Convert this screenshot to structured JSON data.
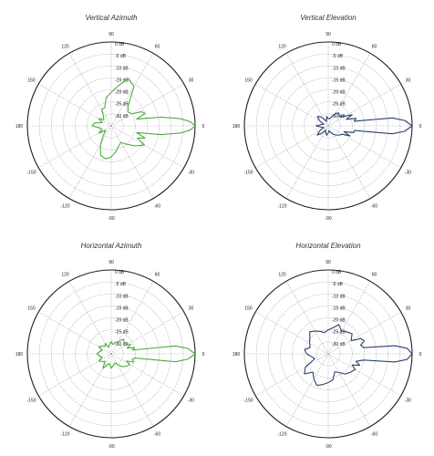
{
  "chart_data": [
    {
      "type": "polar-line",
      "title": "Vertical Azimuth",
      "color": "#4caf3d",
      "radial_ticks": [
        "0 dB",
        "-5 dB",
        "-10 dB",
        "-15 dB",
        "-20 dB",
        "-25 dB",
        "-30 dB"
      ],
      "angle_ticks": [
        "0",
        "30",
        "60",
        "90",
        "120",
        "150",
        "180",
        "-150",
        "-120",
        "-90",
        "-60",
        "-30"
      ],
      "rlim": [
        -35,
        0
      ],
      "series": [
        {
          "angles_deg": [
            -180,
            -170,
            -160,
            -150,
            -140,
            -130,
            -120,
            -110,
            -100,
            -90,
            -80,
            -70,
            -60,
            -50,
            -40,
            -30,
            -25,
            -20,
            -15,
            -10,
            -6,
            -3,
            0,
            3,
            6,
            10,
            15,
            20,
            25,
            30,
            40,
            50,
            60,
            70,
            80,
            90,
            100,
            110,
            120,
            130,
            140,
            150,
            160,
            170,
            180
          ],
          "gain_db": [
            -27,
            -30,
            -31,
            -29,
            -32,
            -30,
            -26,
            -22,
            -21,
            -22,
            -24,
            -26,
            -27,
            -25,
            -22,
            -19,
            -23,
            -20,
            -24,
            -14,
            -6,
            -2,
            0,
            -2,
            -6,
            -14,
            -24,
            -20,
            -21,
            -25,
            -26,
            -24,
            -16,
            -14,
            -18,
            -21,
            -23,
            -27,
            -27,
            -30,
            -31,
            -29,
            -31,
            -28,
            -27
          ]
        }
      ]
    },
    {
      "type": "polar-line",
      "title": "Vertical Elevation",
      "color": "#2b3f73",
      "radial_ticks": [
        "0 dB",
        "-5 dB",
        "-10 dB",
        "-15 dB",
        "-20 dB",
        "-25 dB",
        "-30 dB"
      ],
      "angle_ticks": [
        "0",
        "30",
        "60",
        "90",
        "120",
        "150",
        "180",
        "-150",
        "-120",
        "-90",
        "-60",
        "-30"
      ],
      "rlim": [
        -35,
        0
      ],
      "series": [
        {
          "angles_deg": [
            -180,
            -170,
            -160,
            -150,
            -140,
            -130,
            -120,
            -110,
            -100,
            -90,
            -80,
            -70,
            -60,
            -50,
            -40,
            -30,
            -25,
            -20,
            -15,
            -10,
            -7,
            -4,
            0,
            4,
            7,
            10,
            15,
            20,
            25,
            30,
            40,
            50,
            60,
            70,
            80,
            90,
            100,
            110,
            120,
            130,
            140,
            150,
            160,
            170,
            180
          ],
          "gain_db": [
            -30,
            -32,
            -33,
            -31,
            -29,
            -31,
            -33,
            -32,
            -31,
            -32,
            -33,
            -32,
            -31,
            -30,
            -29,
            -28,
            -25,
            -28,
            -24,
            -24,
            -8,
            -3,
            0,
            -3,
            -8,
            -24,
            -23,
            -27,
            -24,
            -27,
            -29,
            -28,
            -29,
            -31,
            -32,
            -32,
            -31,
            -33,
            -32,
            -30,
            -29,
            -31,
            -33,
            -32,
            -30
          ]
        }
      ]
    },
    {
      "type": "polar-line",
      "title": "Horizontal Azimuth",
      "color": "#4caf3d",
      "radial_ticks": [
        "0 dB",
        "-5 dB",
        "-10 dB",
        "-15 dB",
        "-20 dB",
        "-25 dB",
        "-30 dB"
      ],
      "angle_ticks": [
        "0",
        "30",
        "60",
        "90",
        "120",
        "150",
        "180",
        "-150",
        "-120",
        "-90",
        "-60",
        "-30"
      ],
      "rlim": [
        -35,
        0
      ],
      "series": [
        {
          "angles_deg": [
            -180,
            -170,
            -160,
            -150,
            -140,
            -130,
            -120,
            -110,
            -100,
            -90,
            -80,
            -70,
            -60,
            -50,
            -40,
            -30,
            -25,
            -20,
            -15,
            -10,
            -7,
            -4,
            0,
            4,
            7,
            10,
            15,
            20,
            25,
            30,
            40,
            50,
            60,
            70,
            80,
            90,
            100,
            110,
            120,
            130,
            140,
            150,
            160,
            170,
            180
          ],
          "gain_db": [
            -29,
            -30,
            -31,
            -29,
            -30,
            -31,
            -28,
            -30,
            -31,
            -29,
            -30,
            -31,
            -30,
            -28,
            -27,
            -26,
            -28,
            -25,
            -26,
            -25,
            -8,
            -3,
            0,
            -3,
            -8,
            -26,
            -25,
            -28,
            -26,
            -27,
            -28,
            -27,
            -29,
            -30,
            -31,
            -30,
            -31,
            -32,
            -30,
            -31,
            -30,
            -29,
            -31,
            -30,
            -29
          ]
        }
      ]
    },
    {
      "type": "polar-line",
      "title": "Horizontal Elevation",
      "color": "#2b3f73",
      "radial_ticks": [
        "0 dB",
        "-5 dB",
        "-10 dB",
        "-15 dB",
        "-20 dB",
        "-25 dB",
        "-30 dB"
      ],
      "angle_ticks": [
        "0",
        "30",
        "60",
        "90",
        "120",
        "150",
        "180",
        "-150",
        "-120",
        "-90",
        "-60",
        "-30"
      ],
      "rlim": [
        -35,
        0
      ],
      "series": [
        {
          "angles_deg": [
            -180,
            -170,
            -160,
            -150,
            -140,
            -130,
            -120,
            -110,
            -100,
            -90,
            -80,
            -70,
            -60,
            -50,
            -40,
            -30,
            -25,
            -20,
            -15,
            -10,
            -7,
            -4,
            0,
            4,
            7,
            10,
            15,
            20,
            25,
            30,
            40,
            50,
            60,
            70,
            80,
            90,
            100,
            110,
            120,
            130,
            140,
            150,
            160,
            170,
            180
          ],
          "gain_db": [
            -26,
            -28,
            -29,
            -24,
            -22,
            -25,
            -23,
            -21,
            -22,
            -23,
            -24,
            -27,
            -26,
            -24,
            -23,
            -22,
            -24,
            -21,
            -23,
            -20,
            -7,
            -2,
            0,
            -2,
            -7,
            -20,
            -21,
            -19,
            -20,
            -24,
            -22,
            -23,
            -24,
            -22,
            -24,
            -25,
            -26,
            -25,
            -24,
            -23,
            -25,
            -26,
            -27,
            -25,
            -26
          ]
        }
      ]
    }
  ]
}
